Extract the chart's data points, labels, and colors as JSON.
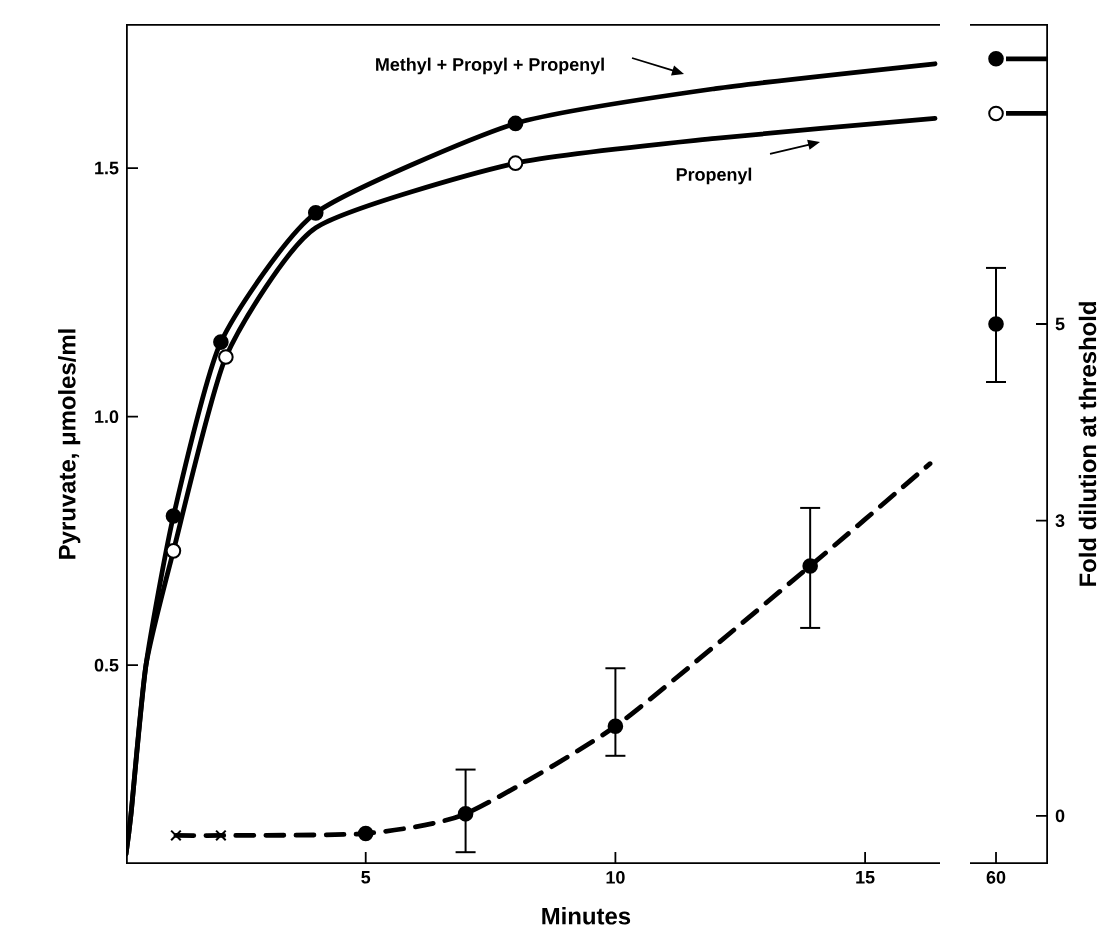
{
  "chart_data": [
    {
      "type": "line",
      "xlabel": "Minutes",
      "ylabel": "Pyruvate, μmoles/ml",
      "xlim": [
        0.2,
        16.5
      ],
      "xticks": [
        5,
        10,
        15
      ],
      "ylim": [
        0.1,
        1.79
      ],
      "yticks": [
        0.5,
        {
          "value": 1,
          "label": "1.0"
        },
        1.5
      ],
      "y2lim": [
        -0.49,
        8.05
      ],
      "tick_labels": "xy",
      "line_style": "solid",
      "marker": "none",
      "series": [
        {
          "name": "Methyl + Propyl + Propenyl",
          "color": "#000000",
          "x": [
            0.2,
            0.3,
            0.6,
            1.15,
            2.1,
            4.0,
            8.0,
            12.0,
            16.4
          ],
          "values": [
            0.12,
            0.2,
            0.5,
            0.8,
            1.15,
            1.41,
            1.59,
            1.66,
            1.71
          ]
        },
        {
          "name": "Propenyl",
          "color": "#000000",
          "x": [
            0.2,
            0.3,
            0.6,
            1.15,
            2.2,
            4.0,
            8.0,
            12.0,
            16.4
          ],
          "values": [
            0.12,
            0.2,
            0.5,
            0.73,
            1.12,
            1.38,
            1.51,
            1.56,
            1.6
          ]
        },
        {
          "type": "scatter",
          "marker": "circle",
          "color": "#000000",
          "x": [
            1.15,
            2.1,
            4.0,
            8.0
          ],
          "values": [
            0.8,
            1.15,
            1.41,
            1.59
          ]
        },
        {
          "type": "scatter",
          "marker": "circle",
          "color": "#ffffff",
          "x": [
            1.15,
            2.2,
            8.0
          ],
          "values": [
            0.73,
            1.12,
            1.51
          ]
        },
        {
          "type": "line",
          "axis": "y2",
          "line_style": "dashed",
          "color": "#000000",
          "x": [
            1.2,
            2.1,
            5,
            7,
            10,
            13.9,
            16.3
          ],
          "values": [
            -0.2,
            -0.2,
            -0.18,
            0.02,
            0.91,
            2.54,
            3.58
          ]
        },
        {
          "type": "scatter",
          "axis": "y2",
          "marker": "cross",
          "color": "#000000",
          "x": [
            1.2,
            2.1
          ],
          "values": [
            -0.2,
            -0.2
          ]
        },
        {
          "type": "scatter",
          "axis": "y2",
          "marker": "circle",
          "color": "#000000",
          "x": [
            5,
            7,
            10,
            13.9
          ],
          "values": [
            -0.18,
            0.02,
            0.91,
            2.54
          ],
          "errors": [
            null,
            [
              -0.37,
              0.47
            ],
            [
              0.61,
              1.5
            ],
            [
              1.91,
              3.13
            ]
          ]
        }
      ]
    },
    {
      "type": "line",
      "y2label": "Fold dilution at threshold",
      "categories": [
        "60"
      ],
      "ylim": [
        0.1,
        1.79
      ],
      "y2lim": [
        -0.49,
        8.05
      ],
      "y2ticks": [
        0,
        3,
        5
      ],
      "tick_labels": "xy2",
      "line_style": "solid",
      "marker": "none",
      "series": [
        {
          "type": "scatter",
          "marker": "circle",
          "color": "#000000",
          "values": [
            1.72
          ]
        },
        {
          "type": "scatter",
          "marker": "circle",
          "color": "#ffffff",
          "values": [
            1.61
          ]
        },
        {
          "type": "scatter",
          "axis": "y2",
          "marker": "circle",
          "color": "#000000",
          "values": [
            5.0
          ],
          "errors": [
            [
              4.41,
              5.57
            ]
          ]
        }
      ]
    }
  ]
}
